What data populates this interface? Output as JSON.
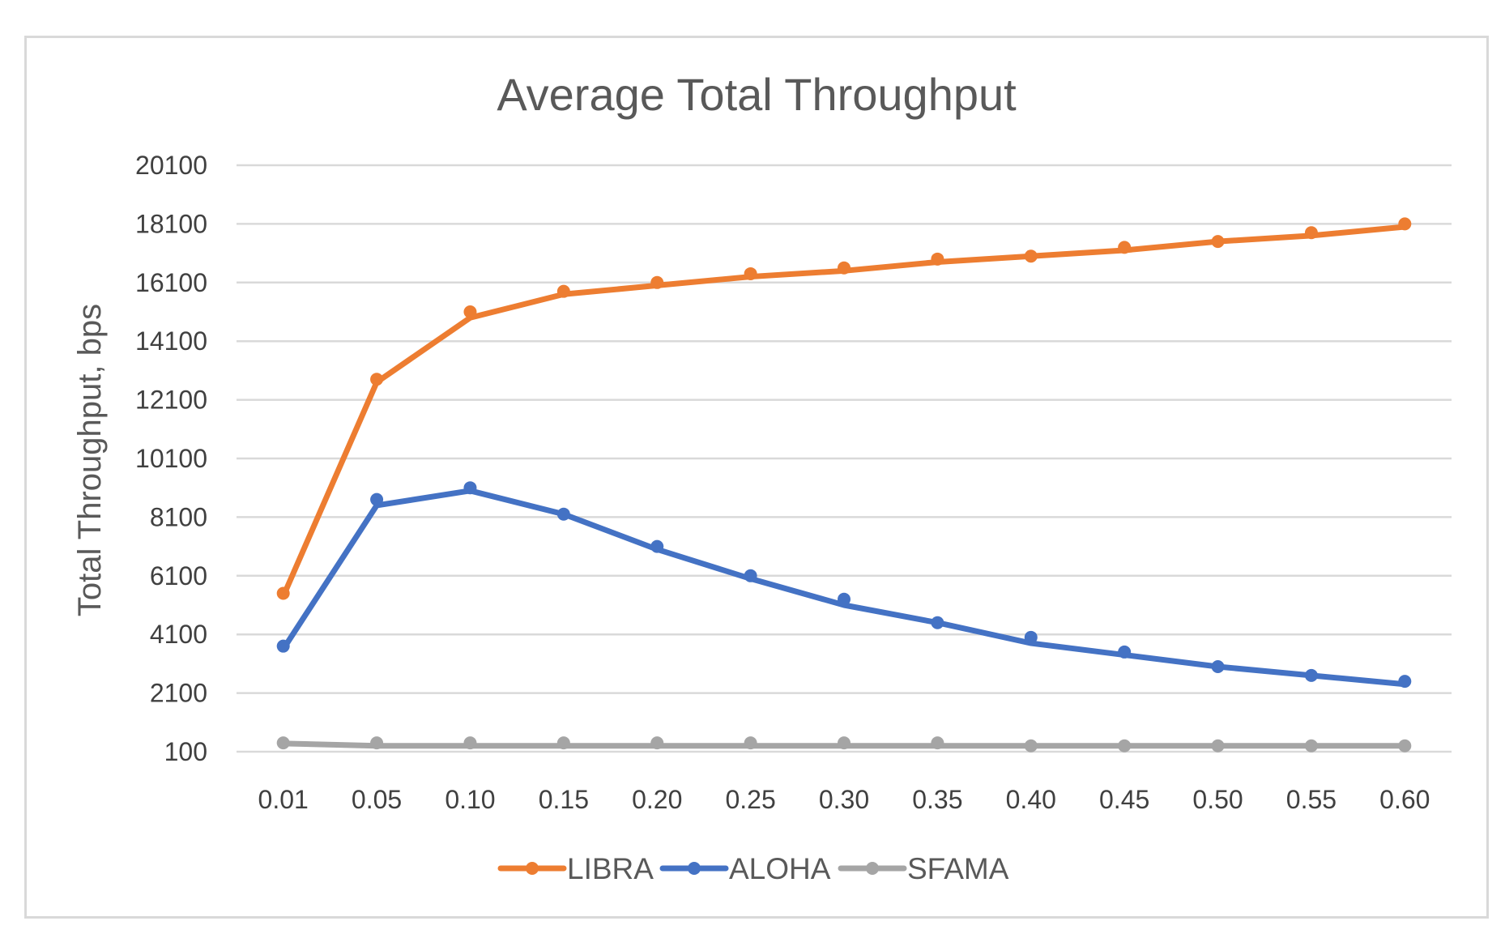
{
  "chart_data": {
    "type": "line",
    "title": "Average Total Throughput",
    "xlabel": "",
    "ylabel": "Total Throughput, bps",
    "categories": [
      "0.01",
      "0.05",
      "0.10",
      "0.15",
      "0.20",
      "0.25",
      "0.30",
      "0.35",
      "0.40",
      "0.45",
      "0.50",
      "0.55",
      "0.60"
    ],
    "ylim": [
      100,
      20100
    ],
    "yticks": [
      "100",
      "2100",
      "4100",
      "6100",
      "8100",
      "10100",
      "12100",
      "14100",
      "16100",
      "18100",
      "20100"
    ],
    "grid": true,
    "legend_position": "bottom",
    "series": [
      {
        "name": "LIBRA",
        "color": "#ed7d31",
        "values": [
          5500,
          12800,
          15100,
          15800,
          16100,
          16400,
          16600,
          16900,
          17000,
          17300,
          17500,
          17800,
          18100
        ],
        "trend": [
          5400,
          12700,
          14900,
          15700,
          16000,
          16300,
          16500,
          16800,
          17000,
          17200,
          17500,
          17700,
          18000
        ]
      },
      {
        "name": "ALOHA",
        "color": "#4472c4",
        "values": [
          3700,
          8700,
          9100,
          8200,
          7100,
          6100,
          5300,
          4500,
          4000,
          3500,
          3000,
          2700,
          2500
        ],
        "trend": [
          3600,
          8500,
          9000,
          8200,
          7000,
          6000,
          5100,
          4500,
          3800,
          3400,
          3000,
          2700,
          2400
        ]
      },
      {
        "name": "SFAMA",
        "color": "#a5a5a5",
        "values": [
          400,
          400,
          400,
          400,
          400,
          400,
          400,
          400,
          300,
          300,
          300,
          300,
          300
        ],
        "trend": [
          380,
          300,
          300,
          300,
          300,
          300,
          300,
          300,
          300,
          300,
          300,
          300,
          300
        ]
      }
    ]
  }
}
